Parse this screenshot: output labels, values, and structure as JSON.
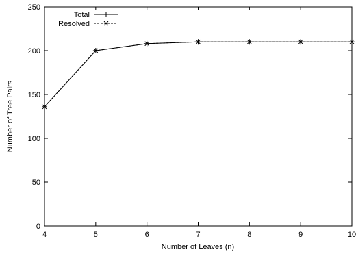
{
  "chart_data": {
    "type": "line",
    "title": "",
    "xlabel": "Number of Leaves (n)",
    "ylabel": "Number of Tree Pairs",
    "x": [
      4,
      5,
      6,
      7,
      8,
      9,
      10
    ],
    "xlim": [
      4,
      10
    ],
    "ylim": [
      0,
      250
    ],
    "xticks": [
      "4",
      "5",
      "6",
      "7",
      "8",
      "9",
      "10"
    ],
    "yticks": [
      "0",
      "50",
      "100",
      "150",
      "200",
      "250"
    ],
    "grid": false,
    "legend_position": "top-left",
    "series": [
      {
        "name": "Total",
        "values": [
          136,
          200,
          208,
          210,
          210,
          210,
          210
        ],
        "line_style": "solid",
        "marker": "plus",
        "color": "#000000"
      },
      {
        "name": "Resolved",
        "values": [
          136,
          200,
          208,
          210,
          210,
          210,
          210
        ],
        "line_style": "dashed",
        "marker": "cross",
        "color": "#000000"
      }
    ]
  }
}
